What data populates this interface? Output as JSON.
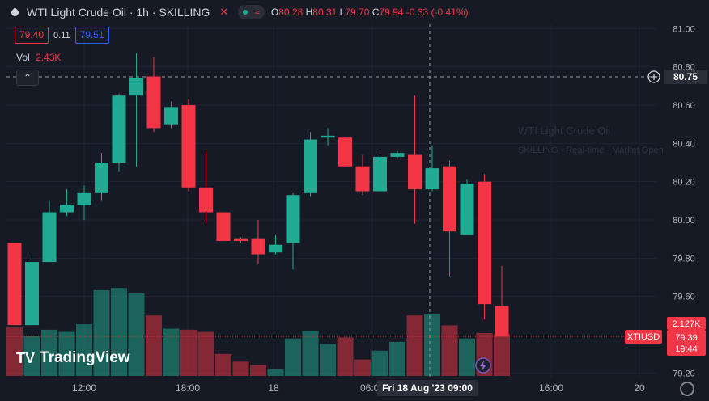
{
  "header": {
    "title": "WTI Light Crude Oil · 1h · SKILLING",
    "open_label": "O",
    "open": "80.28",
    "high_label": "H",
    "high": "80.31",
    "low_label": "L",
    "low": "79.70",
    "close_label": "C",
    "close": "79.94",
    "change": "-0.33 (-0.41%)"
  },
  "trade": {
    "sell": "79.40",
    "spread": "0.11",
    "buy": "79.51"
  },
  "volume": {
    "label": "Vol",
    "value": "2.43K"
  },
  "watermark": {
    "line1": "WTI Light Crude Oil",
    "line2": "SKILLING · Real-time · Market Open"
  },
  "brand": "TradingView",
  "colors": {
    "up": "#22ab94",
    "down": "#f23645",
    "bg": "#161a25"
  },
  "chart_data": {
    "type": "candlestick",
    "symbol": "XTIUSD",
    "y_ticks": [
      "81.00",
      "80.80",
      "80.60",
      "80.40",
      "80.20",
      "80.00",
      "79.80",
      "79.60",
      "79.20"
    ],
    "x_ticks": [
      "12:00",
      "18:00",
      "18",
      "06:00",
      "16:00",
      "20"
    ],
    "ylim": [
      79.15,
      81.05
    ],
    "crosshair": {
      "price": "80.75",
      "time": "Fri 18 Aug '23   09:00"
    },
    "last_price": {
      "symbol": "XTIUSD",
      "price": "79.39",
      "countdown": "19:44"
    },
    "volume_label": "2.127K",
    "candles": [
      {
        "o": 79.88,
        "h": 79.88,
        "l": 79.45,
        "c": 79.45
      },
      {
        "o": 79.45,
        "h": 79.82,
        "l": 79.45,
        "c": 79.78
      },
      {
        "o": 79.78,
        "h": 80.1,
        "l": 79.78,
        "c": 80.04
      },
      {
        "o": 80.04,
        "h": 80.16,
        "l": 80.02,
        "c": 80.08
      },
      {
        "o": 80.08,
        "h": 80.18,
        "l": 80.0,
        "c": 80.14
      },
      {
        "o": 80.14,
        "h": 80.35,
        "l": 80.1,
        "c": 80.3
      },
      {
        "o": 80.3,
        "h": 80.66,
        "l": 80.25,
        "c": 80.65
      },
      {
        "o": 80.65,
        "h": 80.87,
        "l": 80.28,
        "c": 80.74
      },
      {
        "o": 80.75,
        "h": 80.85,
        "l": 80.46,
        "c": 80.48
      },
      {
        "o": 80.5,
        "h": 80.62,
        "l": 80.48,
        "c": 80.59
      },
      {
        "o": 80.6,
        "h": 80.63,
        "l": 80.15,
        "c": 80.17
      },
      {
        "o": 80.17,
        "h": 80.36,
        "l": 79.98,
        "c": 80.04
      },
      {
        "o": 80.04,
        "h": 80.04,
        "l": 79.9,
        "c": 79.89
      },
      {
        "o": 79.9,
        "h": 79.91,
        "l": 79.88,
        "c": 79.89
      },
      {
        "o": 79.9,
        "h": 80.0,
        "l": 79.77,
        "c": 79.82
      },
      {
        "o": 79.83,
        "h": 79.92,
        "l": 79.82,
        "c": 79.87
      },
      {
        "o": 79.88,
        "h": 80.14,
        "l": 79.74,
        "c": 80.13
      },
      {
        "o": 80.14,
        "h": 80.46,
        "l": 80.12,
        "c": 80.42
      },
      {
        "o": 80.43,
        "h": 80.48,
        "l": 80.39,
        "c": 80.44
      },
      {
        "o": 80.43,
        "h": 80.43,
        "l": 80.28,
        "c": 80.28
      },
      {
        "o": 80.28,
        "h": 80.34,
        "l": 80.13,
        "c": 80.15
      },
      {
        "o": 80.15,
        "h": 80.35,
        "l": 80.15,
        "c": 80.33
      },
      {
        "o": 80.33,
        "h": 80.36,
        "l": 80.32,
        "c": 80.35
      },
      {
        "o": 80.34,
        "h": 80.65,
        "l": 79.98,
        "c": 80.16
      },
      {
        "o": 80.16,
        "h": 80.39,
        "l": 80.15,
        "c": 80.27
      },
      {
        "o": 80.28,
        "h": 80.31,
        "l": 79.7,
        "c": 79.94
      },
      {
        "o": 79.92,
        "h": 80.21,
        "l": 79.92,
        "c": 80.19
      },
      {
        "o": 80.2,
        "h": 80.24,
        "l": 79.48,
        "c": 79.56
      },
      {
        "o": 79.55,
        "h": 79.76,
        "l": 79.39,
        "c": 79.39
      }
    ],
    "volumes": [
      0.44,
      0.36,
      0.42,
      0.4,
      0.47,
      0.78,
      0.8,
      0.75,
      0.55,
      0.43,
      0.42,
      0.4,
      0.2,
      0.13,
      0.1,
      0.06,
      0.34,
      0.41,
      0.29,
      0.35,
      0.15,
      0.23,
      0.31,
      0.55,
      0.56,
      0.46,
      0.34,
      0.39,
      0.38
    ]
  }
}
